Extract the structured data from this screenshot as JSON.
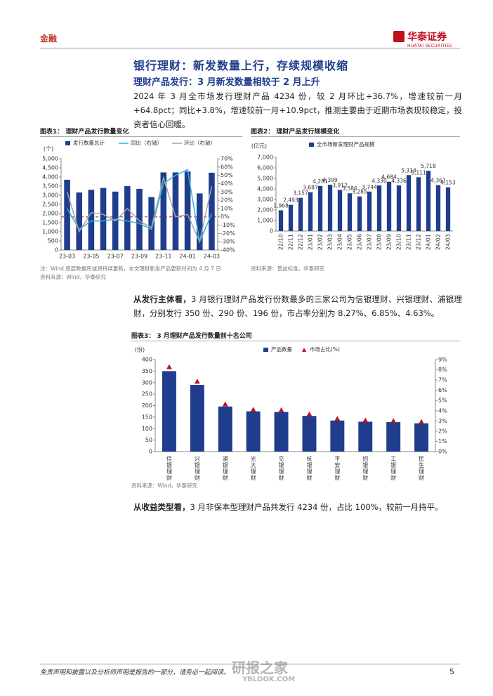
{
  "header": {
    "section": "金融",
    "logo_cn": "华泰证券",
    "logo_en": "HUATAI SECURITIES"
  },
  "headline": "银行理财：新发数量上行，存续规模收缩",
  "subheadline": "理财产品发行：3 月新发数量相较于 2 月上升",
  "paragraphs": [
    {
      "lead": "",
      "text": "2024 年 3 月全市场发行理财产品 4234 份，较 2 月环比+36.7%，增速较前一月+64.8pct；同比+3.8%，增速较前一月+10.9pct，推测主要由于近期市场表现较稳定，投资者信心回暖。"
    },
    {
      "lead": "从发行主体看，",
      "text": "3 月银行理财产品发行份数最多的三家公司为信银理财、兴银理财、浦银理财，分别发行 350 份、290 份、196 份，市占率分别为 8.27%、6.85%、4.63%。"
    },
    {
      "lead": "从收益类型看，",
      "text": "3 月非保本型理财产品共发行 4234 份，占比 100%，较前一月持平。"
    }
  ],
  "chart_data": [
    {
      "type": "combo",
      "label": "图表1：",
      "title": "理财产品发行数量变化",
      "y_unit": "(个)",
      "categories": [
        "23-03",
        null,
        "23-05",
        null,
        "23-07",
        null,
        "23-09",
        null,
        "23-11",
        null,
        "24-01",
        null,
        "24-03"
      ],
      "series": [
        {
          "name": "发行数量总计",
          "type": "bar",
          "color": "#1f3d8c",
          "values": [
            3850,
            3150,
            3300,
            3400,
            3200,
            3500,
            3350,
            2900,
            4250,
            4250,
            4300,
            3100,
            4234
          ]
        },
        {
          "name": "同比（右轴）",
          "type": "line",
          "axis": "y2",
          "color": "#2bb5e0",
          "values": [
            10,
            -15,
            -5,
            -5,
            -3,
            -5,
            -8,
            -15,
            40,
            50,
            57,
            -30,
            3.8
          ]
        },
        {
          "name": "环比（右轴）",
          "type": "line",
          "axis": "y2",
          "color": "#a6a6a6",
          "values": [
            30,
            -18,
            5,
            3,
            -5,
            10,
            -5,
            -13,
            47,
            0,
            3,
            -30,
            36.7
          ]
        }
      ],
      "reference_line": {
        "value": 0,
        "axis": "y2",
        "color": "#e0403a"
      },
      "ylim": [
        0,
        5000
      ],
      "yticks": [
        0,
        500,
        {
          "value": 1000,
          "label": "1,000"
        },
        {
          "value": 1500,
          "label": "1,500"
        },
        {
          "value": 2000,
          "label": "2,000"
        },
        {
          "value": 2500,
          "label": "2,500"
        },
        {
          "value": 3000,
          "label": "3,000"
        },
        {
          "value": 3500,
          "label": "3,500"
        },
        {
          "value": 4000,
          "label": "4,000"
        },
        {
          "value": 4500,
          "label": "4,500"
        },
        {
          "value": 5000,
          "label": "5,000"
        }
      ],
      "y2lim": [
        -40,
        70
      ],
      "y2ticks": [
        {
          "value": -40,
          "label": "-40%"
        },
        {
          "value": -30,
          "label": "-30%"
        },
        {
          "value": -20,
          "label": "-20%"
        },
        {
          "value": -10,
          "label": "-10%"
        },
        {
          "value": 0,
          "label": "0%"
        },
        {
          "value": 10,
          "label": "10%"
        },
        {
          "value": 20,
          "label": "20%"
        },
        {
          "value": 30,
          "label": "30%"
        },
        {
          "value": 40,
          "label": "40%"
        },
        {
          "value": 50,
          "label": "50%"
        },
        {
          "value": 60,
          "label": "60%"
        },
        {
          "value": 70,
          "label": "70%"
        }
      ],
      "grid": false,
      "notes": [
        "注：Wind 底层数据库或将持续更新，本文理财新发产品更新时间为 4 月 7 日",
        "资料来源：Wind，华泰研究"
      ]
    },
    {
      "type": "bar",
      "label": "图表2：",
      "title": "理财产品发行规模变化",
      "y_unit": "(亿元)",
      "categories": [
        "22/10",
        "22/11",
        "22/12",
        "23/01",
        "23/02",
        "23/03",
        "23/04",
        "23/05",
        "23/06",
        "23/07",
        "23/08",
        "23/09",
        "23/10",
        "23/11",
        "23/12",
        "24/01",
        "24/02",
        "24/03"
      ],
      "series": [
        {
          "name": "全市场新发理财产品规模",
          "type": "bar",
          "color": "#1f3d8c",
          "values": [
            1968,
            2493,
            3157,
            3687,
            4281,
            4399,
            3912,
            3586,
            3285,
            3744,
            4330,
            4684,
            4336,
            5314,
            5111,
            5718,
            4361,
            4153
          ],
          "value_labels": [
            "1,968",
            "2,493",
            "3,157",
            "3,687",
            "4,281",
            "4,399",
            "3,912",
            "3,586",
            "3,285",
            "3,744",
            "4,330",
            "4,684",
            "4,336",
            "5,314",
            "5,111",
            "5,718",
            "4,361",
            "4,153"
          ]
        }
      ],
      "ylim": [
        0,
        7000
      ],
      "yticks": [
        0,
        {
          "value": 1000,
          "label": "1,000"
        },
        {
          "value": 2000,
          "label": "2,000"
        },
        {
          "value": 3000,
          "label": "3,000"
        },
        {
          "value": 4000,
          "label": "4,000"
        },
        {
          "value": 5000,
          "label": "5,000"
        },
        {
          "value": 6000,
          "label": "6,000"
        },
        {
          "value": 7000,
          "label": "7,000"
        }
      ],
      "grid": false,
      "notes": [
        "资料来源：普益标准，华泰研究"
      ]
    },
    {
      "type": "combo",
      "label": "图表3：",
      "title": "3 月理财产品发行数量前十名公司",
      "y_unit": "(份)",
      "categories": [
        "信银理财",
        "兴银理财",
        "浦银理财",
        "光大理财",
        "交银理财",
        "杭银理财",
        "平安理财",
        "招银理财",
        "工银理财",
        "民生理财"
      ],
      "series": [
        {
          "name": "产品数量",
          "type": "bar",
          "color": "#1f3d8c",
          "values": [
            350,
            290,
            196,
            175,
            172,
            155,
            135,
            130,
            128,
            123
          ]
        },
        {
          "name": "市场占比(%)",
          "type": "marker",
          "axis": "y2",
          "color": "#c0111f",
          "values": [
            8.27,
            6.85,
            4.63,
            4.1,
            4.05,
            3.65,
            3.2,
            3.05,
            3.0,
            2.9
          ]
        }
      ],
      "ylim": [
        0,
        400
      ],
      "yticks": [
        0,
        50,
        100,
        150,
        200,
        250,
        300,
        350,
        400
      ],
      "y2lim": [
        0,
        9
      ],
      "y2ticks": [
        {
          "value": 0,
          "label": "0%"
        },
        {
          "value": 1,
          "label": "1%"
        },
        {
          "value": 2,
          "label": "2%"
        },
        {
          "value": 3,
          "label": "3%"
        },
        {
          "value": 4,
          "label": "4%"
        },
        {
          "value": 5,
          "label": "5%"
        },
        {
          "value": 6,
          "label": "6%"
        },
        {
          "value": 7,
          "label": "7%"
        },
        {
          "value": 8,
          "label": "8%"
        },
        {
          "value": 9,
          "label": "9%"
        }
      ],
      "grid": false,
      "notes": [
        "资料来源：Wind，华泰研究"
      ]
    }
  ],
  "footer": {
    "disclaimer": "免责声明和披露以及分析师声明是报告的一部分，请务必一起阅读。",
    "page": "5"
  },
  "watermark": {
    "cn": "研报之家",
    "en": "YBLOOK.COM"
  }
}
